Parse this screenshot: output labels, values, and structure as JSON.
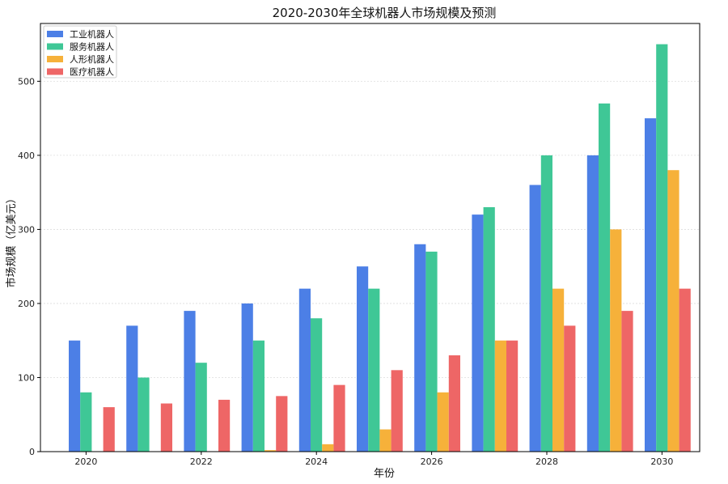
{
  "chart_data": {
    "type": "bar",
    "title": "2020-2030年全球机器人市场规模及预测",
    "xlabel": "年份",
    "ylabel": "市场规模（亿美元）",
    "categories": [
      "2020",
      "2021",
      "2022",
      "2023",
      "2024",
      "2025",
      "2026",
      "2027",
      "2028",
      "2029",
      "2030"
    ],
    "x_tick_labels": [
      "2020",
      "2022",
      "2024",
      "2026",
      "2028",
      "2030"
    ],
    "y_ticks": [
      0,
      100,
      200,
      300,
      400,
      500
    ],
    "ylim": [
      0,
      578
    ],
    "grid": "horizontal",
    "legend_position": "top-left",
    "series": [
      {
        "name": "工业机器人",
        "color": "#4C7FE6",
        "values": [
          150,
          170,
          190,
          200,
          220,
          250,
          280,
          320,
          360,
          400,
          450
        ]
      },
      {
        "name": "服务机器人",
        "color": "#3FC796",
        "values": [
          80,
          100,
          120,
          150,
          180,
          220,
          270,
          330,
          400,
          470,
          550
        ]
      },
      {
        "name": "人形机器人",
        "color": "#F6B13A",
        "values": [
          0,
          0,
          0,
          2,
          10,
          30,
          80,
          150,
          220,
          300,
          380
        ]
      },
      {
        "name": "医疗机器人",
        "color": "#EE6666",
        "values": [
          60,
          65,
          70,
          75,
          90,
          110,
          130,
          150,
          170,
          190,
          220
        ]
      }
    ]
  }
}
